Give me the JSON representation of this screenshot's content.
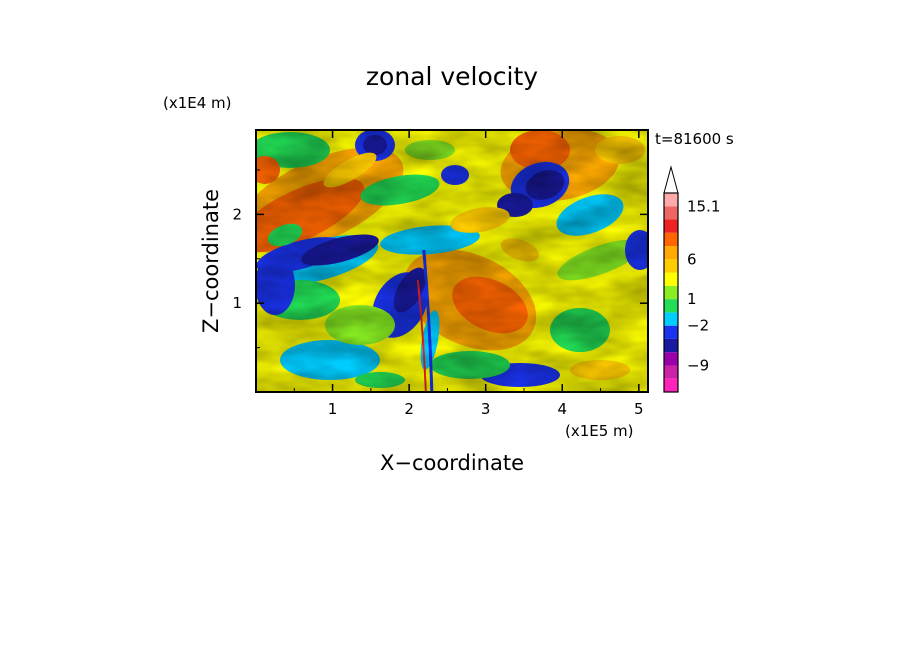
{
  "chart_data": {
    "type": "heatmap",
    "title": "zonal velocity",
    "xlabel": "X−coordinate",
    "ylabel": "Z−coordinate",
    "x_unit": "(x1E5 m)",
    "y_unit": "(x1E4 m)",
    "time_label": "t=81600 s",
    "xlim": [
      0,
      5.12
    ],
    "ylim": [
      0,
      2.95
    ],
    "xticks": [
      1,
      2,
      3,
      4,
      5
    ],
    "xtick_labels": [
      "1",
      "2",
      "3",
      "4",
      "5"
    ],
    "yticks": [
      1,
      2
    ],
    "ytick_labels": [
      "1",
      "2"
    ],
    "colorbar": {
      "colors": [
        "#ff22bb",
        "#cc22aa",
        "#9900aa",
        "#1a1aa0",
        "#1a33ee",
        "#00ccff",
        "#22dd55",
        "#88ee22",
        "#ffff00",
        "#ffcc00",
        "#ffaa00",
        "#ff6600",
        "#ee2222",
        "#ee6666",
        "#ffaaaa"
      ],
      "extend_top_color": "#ffffff",
      "tick_labels": [
        "15.1",
        "6",
        "1",
        "−2",
        "−9"
      ],
      "tick_values": [
        15.1,
        6,
        1,
        -2,
        -9
      ]
    },
    "field_description_features": {
      "jet_band_orange": "upper-left diagonal band and large central-right orange region",
      "blue_cells": "upper-left and upper-right dark blue cells, near-bottom blue band",
      "front": "thin vertical front near x=2.25"
    }
  }
}
